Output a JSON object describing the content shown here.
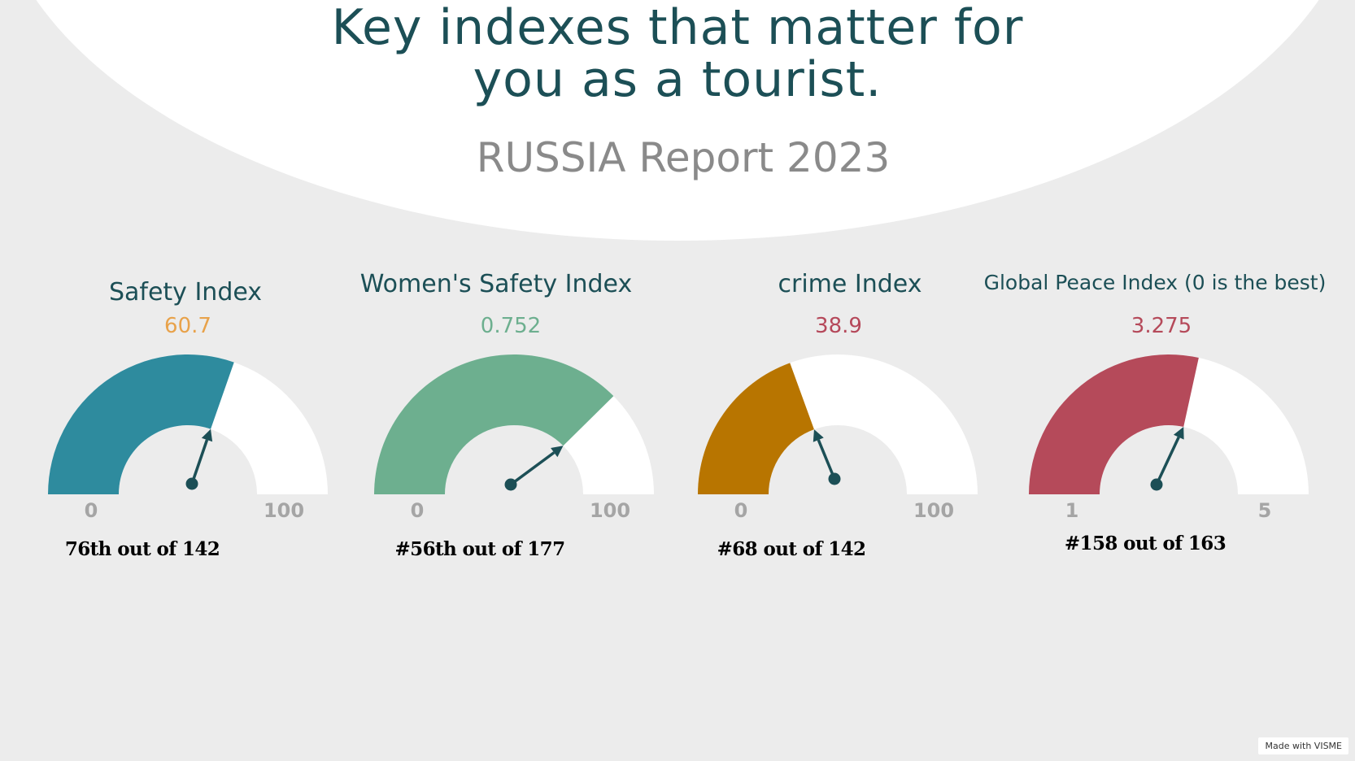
{
  "header": {
    "title_line1": "Key indexes that matter for",
    "title_line2": "you as a tourist.",
    "subtitle": "RUSSIA Report 2023"
  },
  "colors": {
    "title": "#1c4f56",
    "subtitle": "#8a8a8a",
    "needle": "#1c4f56",
    "track": "#ffffff",
    "background": "#ececec"
  },
  "chart_data": [
    {
      "type": "gauge",
      "title": "Safety Index",
      "value": 60.7,
      "value_label": "60.7",
      "min": 0,
      "max": 100,
      "min_label": "0",
      "max_label": "100",
      "fill_color": "#2e8b9e",
      "value_color": "#e8a24a",
      "rank": "76th out of 142"
    },
    {
      "type": "gauge",
      "title": "Women's Safety Index",
      "value": 0.752,
      "value_label": "0.752",
      "min": 0,
      "max": 1,
      "min_label": "0",
      "max_label": "100",
      "fill_color": "#6daf8f",
      "value_color": "#6daf8f",
      "rank": "#56th out of 177"
    },
    {
      "type": "gauge",
      "title": "crime Index",
      "value": 38.9,
      "value_label": "38.9",
      "min": 0,
      "max": 100,
      "min_label": "0",
      "max_label": "100",
      "fill_color": "#b87500",
      "value_color": "#b5485a",
      "rank": "#68 out of 142"
    },
    {
      "type": "gauge",
      "title": "Global Peace Index (0 is the best)",
      "value": 3.275,
      "value_label": "3.275",
      "min": 1,
      "max": 5,
      "min_label": "1",
      "max_label": "5",
      "fill_color": "#b54a5a",
      "value_color": "#b54a5a",
      "rank": "#158 out of 163"
    }
  ],
  "footer": {
    "badge": "Made with VISME"
  }
}
